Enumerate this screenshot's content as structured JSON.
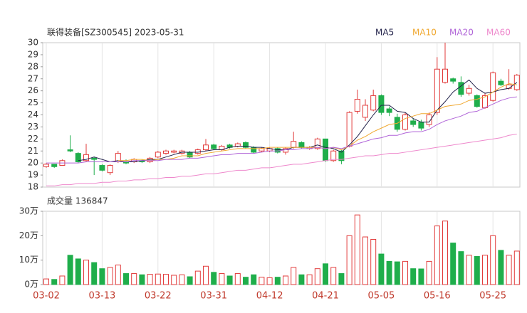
{
  "chart_data": [
    {
      "type": "candlestick",
      "title": "联得装备[SZ300545] 2023-05-31",
      "categories": [
        "03-02",
        null,
        null,
        null,
        null,
        null,
        null,
        "03-13",
        null,
        null,
        null,
        null,
        null,
        null,
        "03-22",
        null,
        null,
        null,
        null,
        null,
        null,
        "03-31",
        null,
        null,
        null,
        null,
        null,
        null,
        "04-12",
        null,
        null,
        null,
        null,
        null,
        null,
        "04-21",
        null,
        null,
        null,
        null,
        null,
        null,
        "05-05",
        null,
        null,
        null,
        null,
        null,
        null,
        "05-16",
        null,
        null,
        null,
        null,
        null,
        null,
        "05-25",
        null,
        null,
        null
      ],
      "open": [
        19.7,
        19.9,
        19.8,
        21.1,
        20.8,
        20.2,
        20.4,
        19.8,
        19.2,
        20.1,
        20.1,
        20.1,
        20.2,
        20.1,
        20.5,
        20.8,
        20.9,
        20.8,
        20.9,
        20.8,
        21.1,
        21.5,
        21.1,
        21.5,
        21.4,
        21.7,
        21.3,
        21.0,
        21.0,
        21.2,
        20.9,
        21.3,
        21.7,
        21.2,
        21.2,
        22.0,
        20.2,
        21.0,
        21.4,
        24.3,
        23.8,
        24.4,
        25.6,
        24.5,
        23.8,
        22.8,
        23.5,
        23.4,
        23.2,
        24.2,
        26.7,
        27.0,
        26.7,
        25.8,
        25.6,
        24.6,
        25.2,
        26.8,
        26.2,
        26.1
      ],
      "high": [
        20.0,
        19.9,
        20.3,
        22.3,
        20.9,
        21.6,
        20.5,
        19.9,
        19.9,
        21.0,
        20.3,
        20.4,
        20.3,
        20.5,
        21.0,
        21.1,
        21.1,
        21.1,
        21.0,
        21.2,
        22.0,
        21.6,
        21.5,
        21.6,
        21.7,
        21.8,
        21.4,
        21.3,
        21.3,
        21.3,
        21.3,
        22.6,
        21.8,
        21.4,
        22.1,
        22.0,
        21.1,
        21.1,
        24.3,
        26.1,
        25.3,
        26.1,
        25.7,
        24.7,
        24.1,
        24.2,
        23.7,
        23.6,
        24.2,
        28.8,
        30.0,
        27.1,
        27.2,
        26.5,
        25.7,
        25.8,
        27.6,
        27.0,
        27.8,
        27.4
      ],
      "low": [
        19.6,
        19.6,
        19.8,
        20.9,
        20.0,
        20.1,
        19.0,
        19.3,
        19.0,
        20.0,
        19.9,
        20.0,
        20.0,
        20.0,
        20.4,
        20.7,
        20.8,
        20.7,
        20.4,
        20.7,
        21.0,
        21.1,
        21.0,
        21.2,
        21.3,
        21.2,
        20.8,
        20.9,
        20.9,
        20.8,
        20.7,
        21.2,
        21.2,
        21.1,
        21.1,
        20.1,
        20.1,
        19.9,
        21.3,
        24.1,
        23.5,
        24.3,
        24.0,
        23.9,
        22.6,
        22.7,
        23.0,
        22.7,
        23.0,
        24.0,
        26.6,
        26.6,
        25.5,
        25.6,
        24.6,
        24.5,
        25.1,
        26.4,
        26.1,
        26.0
      ],
      "close": [
        19.9,
        19.7,
        20.2,
        21.0,
        20.1,
        20.7,
        20.3,
        19.4,
        19.8,
        20.8,
        20.0,
        20.3,
        20.1,
        20.4,
        20.9,
        21.0,
        21.0,
        21.0,
        20.5,
        21.1,
        21.5,
        21.2,
        21.4,
        21.3,
        21.6,
        21.3,
        20.9,
        21.2,
        21.2,
        20.9,
        21.2,
        21.8,
        21.3,
        21.3,
        22.0,
        20.2,
        21.0,
        20.2,
        24.2,
        25.3,
        24.8,
        25.6,
        24.2,
        24.2,
        22.8,
        24.0,
        23.2,
        22.9,
        24.0,
        27.8,
        27.8,
        26.8,
        25.7,
        26.2,
        24.7,
        25.6,
        27.5,
        26.5,
        26.5,
        27.3
      ],
      "up_color": "#e23b3b",
      "down_color": "#1fae4b",
      "series": [
        {
          "name": "MA5",
          "color": "#22224a",
          "values": [
            null,
            null,
            null,
            null,
            20.2,
            20.3,
            20.5,
            20.3,
            20.1,
            20.2,
            20.1,
            20.1,
            20.2,
            20.3,
            20.3,
            20.5,
            20.7,
            20.9,
            20.9,
            20.9,
            21.0,
            21.1,
            21.1,
            21.3,
            21.4,
            21.4,
            21.3,
            21.3,
            21.2,
            21.1,
            21.1,
            21.3,
            21.3,
            21.3,
            21.5,
            21.3,
            21.2,
            20.9,
            21.5,
            22.2,
            23.1,
            24.0,
            24.8,
            24.8,
            24.3,
            24.2,
            23.7,
            23.4,
            23.4,
            24.4,
            25.1,
            25.9,
            26.4,
            26.9,
            26.2,
            25.8,
            25.9,
            26.1,
            26.2,
            26.7
          ]
        },
        {
          "name": "MA10",
          "color": "#f0a830",
          "values": [
            null,
            null,
            null,
            null,
            null,
            null,
            null,
            null,
            null,
            20.2,
            20.2,
            20.3,
            20.3,
            20.2,
            20.3,
            20.3,
            20.4,
            20.6,
            20.6,
            20.6,
            20.8,
            20.9,
            21.0,
            21.1,
            21.2,
            21.2,
            21.2,
            21.2,
            21.3,
            21.3,
            21.3,
            21.3,
            21.3,
            21.3,
            21.3,
            21.2,
            21.3,
            21.1,
            21.4,
            21.9,
            22.2,
            22.6,
            22.9,
            23.2,
            23.3,
            23.7,
            23.9,
            24.1,
            24.1,
            24.4,
            24.7,
            24.8,
            24.9,
            25.2,
            25.3,
            25.5,
            25.9,
            26.3,
            26.6,
            26.5
          ]
        },
        {
          "name": "MA20",
          "color": "#b064d8",
          "values": [
            20.0,
            20.0,
            20.0,
            20.0,
            20.0,
            20.1,
            20.1,
            20.1,
            20.1,
            20.1,
            20.1,
            20.2,
            20.2,
            20.2,
            20.2,
            20.3,
            20.3,
            20.3,
            20.4,
            20.4,
            20.5,
            20.6,
            20.7,
            20.7,
            20.8,
            20.8,
            20.8,
            20.9,
            21.0,
            21.0,
            21.1,
            21.1,
            21.2,
            21.2,
            21.3,
            21.2,
            21.3,
            21.2,
            21.4,
            21.6,
            21.8,
            22.0,
            22.1,
            22.3,
            22.3,
            22.5,
            22.6,
            22.6,
            22.8,
            23.2,
            23.5,
            23.7,
            23.9,
            24.2,
            24.3,
            24.6,
            24.9,
            25.2,
            25.4,
            25.5
          ]
        },
        {
          "name": "MA60",
          "color": "#ee88cc",
          "values": [
            18.1,
            18.1,
            18.2,
            18.2,
            18.3,
            18.3,
            18.3,
            18.4,
            18.4,
            18.5,
            18.5,
            18.6,
            18.6,
            18.7,
            18.7,
            18.8,
            18.8,
            18.9,
            18.9,
            19.0,
            19.1,
            19.1,
            19.2,
            19.3,
            19.4,
            19.4,
            19.5,
            19.6,
            19.6,
            19.7,
            19.8,
            19.9,
            19.9,
            20.0,
            20.1,
            20.2,
            20.3,
            20.3,
            20.4,
            20.5,
            20.6,
            20.6,
            20.7,
            20.8,
            20.8,
            20.9,
            21.0,
            21.1,
            21.2,
            21.3,
            21.4,
            21.5,
            21.6,
            21.7,
            21.8,
            21.9,
            22.0,
            22.1,
            22.3,
            22.4
          ]
        }
      ],
      "ylim": [
        18,
        30
      ],
      "yticks": [
        18,
        19,
        20,
        21,
        22,
        23,
        24,
        25,
        26,
        27,
        28,
        29,
        30
      ]
    },
    {
      "type": "bar",
      "title": "成交量 136847",
      "values": [
        2.3,
        2.1,
        3.5,
        12,
        10.5,
        10,
        9,
        6.5,
        7,
        8,
        4.5,
        4.5,
        4,
        4.2,
        4.3,
        4.2,
        3.8,
        4,
        3.2,
        5.5,
        7.5,
        5,
        4.5,
        3.5,
        4.5,
        3,
        4,
        3,
        2.8,
        3,
        3.5,
        7,
        4,
        4,
        6.5,
        8.5,
        7,
        4.5,
        20,
        28.5,
        19.5,
        18.5,
        12.5,
        9.5,
        9.3,
        9.5,
        6.5,
        6.4,
        9.5,
        24,
        26,
        17,
        13.5,
        12,
        11.5,
        12,
        20,
        14,
        12,
        13.7
      ],
      "ylim": [
        0,
        30
      ],
      "yticks": [
        {
          "value": 0,
          "label": "0万"
        },
        {
          "value": 10,
          "label": "10万"
        },
        {
          "value": 20,
          "label": "20万"
        },
        {
          "value": 30,
          "label": "30万"
        }
      ]
    }
  ]
}
